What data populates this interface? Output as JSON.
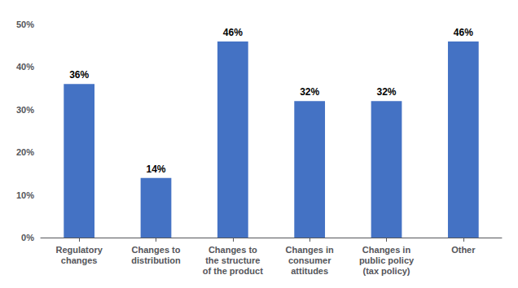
{
  "chart_data": {
    "type": "bar",
    "categories": [
      "Regulatory\nchanges",
      "Changes to\ndistribution",
      "Changes to\nthe structure\nof the product",
      "Changes in\nconsumer\nattitudes",
      "Changes in\npublic policy\n(tax policy)",
      "Other"
    ],
    "values": [
      36,
      14,
      46,
      32,
      32,
      46
    ],
    "value_labels": [
      "36%",
      "14%",
      "46%",
      "32%",
      "32%",
      "46%"
    ],
    "data_labels": true,
    "color": "#4472C4",
    "ylim": [
      0,
      50
    ],
    "yticks": [
      {
        "value": 0,
        "label": "0%"
      },
      {
        "value": 10,
        "label": "10%"
      },
      {
        "value": 20,
        "label": "20%"
      },
      {
        "value": 30,
        "label": "30%"
      },
      {
        "value": 40,
        "label": "40%"
      },
      {
        "value": 50,
        "label": "50%"
      }
    ],
    "grid": false
  }
}
